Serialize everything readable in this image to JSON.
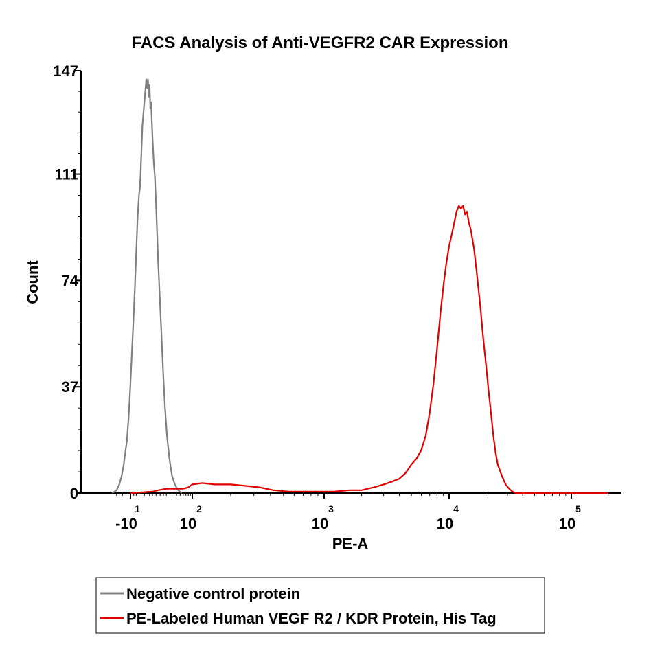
{
  "chart_data": {
    "type": "line",
    "title": "FACS Analysis of Anti-VEGFR2 CAR Expression",
    "xlabel": "PE-A",
    "ylabel": "Count",
    "x_scale": "biexponential (log)",
    "ylim": [
      0,
      147
    ],
    "y_ticks": [
      {
        "value": 0,
        "label": "0"
      },
      {
        "value": 37,
        "label": "37"
      },
      {
        "value": 74,
        "label": "74"
      },
      {
        "value": 111,
        "label": "111"
      },
      {
        "value": 147,
        "label": "147"
      }
    ],
    "x_ticks": [
      {
        "value": -10,
        "base": "-10",
        "exp": "1"
      },
      {
        "value": 100,
        "base": "10",
        "exp": "2"
      },
      {
        "value": 1000,
        "base": "10",
        "exp": "3"
      },
      {
        "value": 10000,
        "base": "10",
        "exp": "4"
      },
      {
        "value": 100000,
        "base": "10",
        "exp": "5"
      }
    ],
    "legend_position": "bottom",
    "series": [
      {
        "name": "Negative control protein",
        "color": "#808080",
        "points": [
          [
            -40,
            0
          ],
          [
            -30,
            1
          ],
          [
            -25,
            3
          ],
          [
            -21,
            6
          ],
          [
            -18,
            10
          ],
          [
            -16,
            14
          ],
          [
            -14,
            18
          ],
          [
            -12,
            26
          ],
          [
            -10.5,
            35
          ],
          [
            -9,
            46
          ],
          [
            -7.5,
            58
          ],
          [
            -6,
            72
          ],
          [
            -5,
            84
          ],
          [
            -4,
            96
          ],
          [
            -3,
            104
          ],
          [
            -2.5,
            106
          ],
          [
            -2,
            112
          ],
          [
            -1.5,
            120
          ],
          [
            -1,
            128
          ],
          [
            -0.5,
            132
          ],
          [
            0,
            136
          ],
          [
            0.5,
            140
          ],
          [
            1,
            144
          ],
          [
            1.5,
            141
          ],
          [
            2,
            144
          ],
          [
            2.5,
            138
          ],
          [
            3,
            142
          ],
          [
            3.5,
            134
          ],
          [
            4,
            136
          ],
          [
            4.5,
            130
          ],
          [
            5,
            124
          ],
          [
            6,
            115
          ],
          [
            7,
            110
          ],
          [
            8,
            100
          ],
          [
            9,
            90
          ],
          [
            10,
            80
          ],
          [
            12,
            66
          ],
          [
            14,
            52
          ],
          [
            16,
            40
          ],
          [
            18,
            30
          ],
          [
            21,
            20
          ],
          [
            25,
            12
          ],
          [
            30,
            6
          ],
          [
            36,
            3
          ],
          [
            44,
            1
          ],
          [
            55,
            0
          ]
        ]
      },
      {
        "name": "PE-Labeled Human VEGF R2 / KDR Protein, His Tag",
        "color": "#e00000",
        "points": [
          [
            -10,
            0
          ],
          [
            5,
            0.5
          ],
          [
            10,
            1
          ],
          [
            20,
            1.5
          ],
          [
            40,
            1.5
          ],
          [
            60,
            1.5
          ],
          [
            80,
            2
          ],
          [
            100,
            3
          ],
          [
            120,
            3.5
          ],
          [
            150,
            3
          ],
          [
            200,
            3
          ],
          [
            260,
            2.5
          ],
          [
            330,
            2
          ],
          [
            420,
            1
          ],
          [
            550,
            0.5
          ],
          [
            700,
            0.5
          ],
          [
            900,
            0.5
          ],
          [
            1200,
            0.5
          ],
          [
            1600,
            1
          ],
          [
            2000,
            1
          ],
          [
            2500,
            2
          ],
          [
            3000,
            3
          ],
          [
            3500,
            4
          ],
          [
            4000,
            5
          ],
          [
            4500,
            7
          ],
          [
            5000,
            10
          ],
          [
            5500,
            12
          ],
          [
            6000,
            15
          ],
          [
            6500,
            20
          ],
          [
            7000,
            28
          ],
          [
            7500,
            38
          ],
          [
            8000,
            50
          ],
          [
            8500,
            62
          ],
          [
            9000,
            72
          ],
          [
            9500,
            80
          ],
          [
            10000,
            86
          ],
          [
            10500,
            90
          ],
          [
            11000,
            94
          ],
          [
            11500,
            98
          ],
          [
            12000,
            100
          ],
          [
            12500,
            99
          ],
          [
            13000,
            100
          ],
          [
            13500,
            97
          ],
          [
            14000,
            98
          ],
          [
            14500,
            94
          ],
          [
            15000,
            92
          ],
          [
            16000,
            85
          ],
          [
            17000,
            75
          ],
          [
            18000,
            65
          ],
          [
            19000,
            54
          ],
          [
            20000,
            45
          ],
          [
            21000,
            36
          ],
          [
            22000,
            28
          ],
          [
            23000,
            20
          ],
          [
            24000,
            14
          ],
          [
            25000,
            10
          ],
          [
            27000,
            6
          ],
          [
            29000,
            3
          ],
          [
            31000,
            1.5
          ],
          [
            33000,
            0.5
          ],
          [
            35000,
            0
          ],
          [
            200000,
            0
          ]
        ]
      }
    ]
  }
}
